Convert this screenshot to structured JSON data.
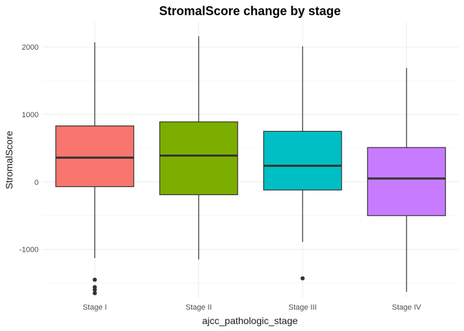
{
  "chart_data": {
    "type": "boxplot",
    "title": "StromalScore change by stage",
    "xlabel": "ajcc_pathologic_stage",
    "ylabel": "StromalScore",
    "ylim": [
      -1720,
      2370
    ],
    "y_ticks": [
      -1000,
      0,
      1000,
      2000
    ],
    "y_tick_labels": [
      "-1000",
      "0",
      "1000",
      "2000"
    ],
    "grid": true,
    "legend": "none",
    "categories": [
      "Stage I",
      "Stage II",
      "Stage III",
      "Stage IV"
    ],
    "colors": [
      "#F8766D",
      "#7CAE00",
      "#00BFC4",
      "#C77CFF"
    ],
    "boxes": [
      {
        "category": "Stage I",
        "whisker_low": -1130,
        "q1": -70,
        "median": 360,
        "q3": 830,
        "whisker_high": 2070,
        "outliers": [
          -1450,
          -1560,
          -1600,
          -1650
        ]
      },
      {
        "category": "Stage II",
        "whisker_low": -1150,
        "q1": -190,
        "median": 390,
        "q3": 890,
        "whisker_high": 2160,
        "outliers": []
      },
      {
        "category": "Stage III",
        "whisker_low": -890,
        "q1": -120,
        "median": 240,
        "q3": 750,
        "whisker_high": 2010,
        "outliers": [
          -1430
        ]
      },
      {
        "category": "Stage IV",
        "whisker_low": -1630,
        "q1": -500,
        "median": 50,
        "q3": 510,
        "whisker_high": 1690,
        "outliers": []
      }
    ]
  }
}
